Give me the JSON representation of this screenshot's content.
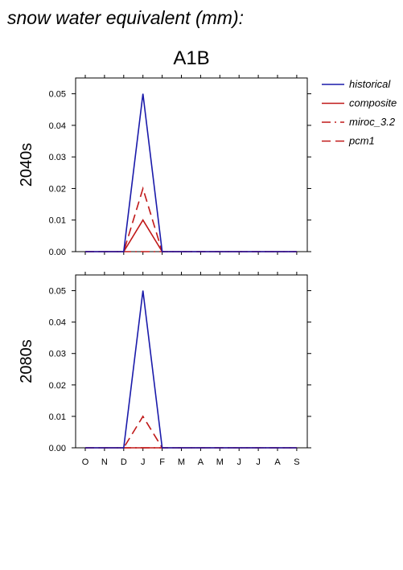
{
  "page_title": "snow water equivalent (mm):",
  "scenario": "A1B",
  "colors": {
    "historical": "#1a1aaa",
    "future": "#c01818",
    "axis": "#000000"
  },
  "legend": [
    {
      "label": "historical",
      "style": "solid",
      "color": "#1a1aaa"
    },
    {
      "label": "composite",
      "style": "solid",
      "color": "#c01818"
    },
    {
      "label": "miroc_3.2",
      "style": "dashdot",
      "color": "#c01818"
    },
    {
      "label": "pcm1",
      "style": "dashed",
      "color": "#c01818"
    }
  ],
  "chart_data": [
    {
      "type": "line",
      "row_label": "2040s",
      "categories": [
        "O",
        "N",
        "D",
        "J",
        "F",
        "M",
        "A",
        "M",
        "J",
        "J",
        "A",
        "S"
      ],
      "ylim": [
        0,
        0.055
      ],
      "yticks": [
        "0.00",
        "0.01",
        "0.02",
        "0.03",
        "0.04",
        "0.05"
      ],
      "ytick_values": [
        0,
        0.01,
        0.02,
        0.03,
        0.04,
        0.05
      ],
      "show_x_tick_labels": false,
      "series": [
        {
          "name": "historical",
          "style": "solid",
          "color": "#1a1aaa",
          "values": [
            0,
            0,
            0,
            0.05,
            0,
            0,
            0,
            0,
            0,
            0,
            0,
            0
          ]
        },
        {
          "name": "composite",
          "style": "solid",
          "color": "#c01818",
          "values": [
            0,
            0,
            0,
            0.01,
            0,
            0,
            0,
            0,
            0,
            0,
            0,
            0
          ]
        },
        {
          "name": "miroc_3.2",
          "style": "dashdot",
          "color": "#c01818",
          "values": [
            0,
            0,
            0,
            0,
            0,
            0,
            0,
            0,
            0,
            0,
            0,
            0
          ]
        },
        {
          "name": "pcm1",
          "style": "dashed",
          "color": "#c01818",
          "values": [
            0,
            0,
            0,
            0.02,
            0,
            0,
            0,
            0,
            0,
            0,
            0,
            0
          ]
        }
      ]
    },
    {
      "type": "line",
      "row_label": "2080s",
      "categories": [
        "O",
        "N",
        "D",
        "J",
        "F",
        "M",
        "A",
        "M",
        "J",
        "J",
        "A",
        "S"
      ],
      "ylim": [
        0,
        0.055
      ],
      "yticks": [
        "0.00",
        "0.01",
        "0.02",
        "0.03",
        "0.04",
        "0.05"
      ],
      "ytick_values": [
        0,
        0.01,
        0.02,
        0.03,
        0.04,
        0.05
      ],
      "show_x_tick_labels": true,
      "series": [
        {
          "name": "historical",
          "style": "solid",
          "color": "#1a1aaa",
          "values": [
            0,
            0,
            0,
            0.05,
            0,
            0,
            0,
            0,
            0,
            0,
            0,
            0
          ]
        },
        {
          "name": "composite",
          "style": "solid",
          "color": "#c01818",
          "values": [
            0,
            0,
            0,
            0,
            0,
            0,
            0,
            0,
            0,
            0,
            0,
            0
          ]
        },
        {
          "name": "miroc_3.2",
          "style": "dashdot",
          "color": "#c01818",
          "values": [
            0,
            0,
            0,
            0,
            0,
            0,
            0,
            0,
            0,
            0,
            0,
            0
          ]
        },
        {
          "name": "pcm1",
          "style": "dashed",
          "color": "#c01818",
          "values": [
            0,
            0,
            0,
            0.01,
            0,
            0,
            0,
            0,
            0,
            0,
            0,
            0
          ]
        }
      ]
    }
  ]
}
